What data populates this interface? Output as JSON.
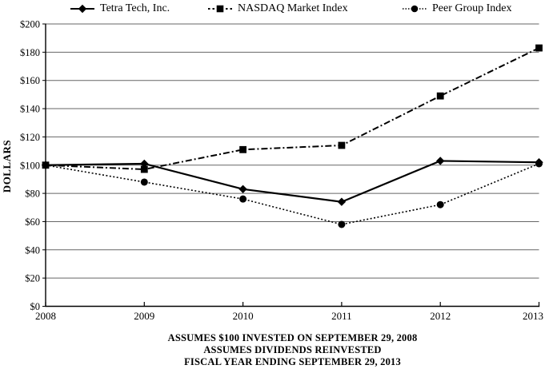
{
  "chart_data": {
    "type": "line",
    "x": [
      "2008",
      "2009",
      "2010",
      "2011",
      "2012",
      "2013"
    ],
    "ylabel": "DOLLARS",
    "ylim": [
      0,
      200
    ],
    "ytick_step": 20,
    "ytick_labels": [
      "$0",
      "$20",
      "$40",
      "$60",
      "$80",
      "$100",
      "$120",
      "$140",
      "$160",
      "$180",
      "$200"
    ],
    "grid": "horizontal",
    "legend_position": "top",
    "series": [
      {
        "name": "Tetra Tech, Inc.",
        "marker": "diamond",
        "line_style": "solid",
        "color": "#000000",
        "values": [
          100,
          101,
          83,
          74,
          103,
          102
        ]
      },
      {
        "name": "NASDAQ Market Index",
        "marker": "square",
        "line_style": "dash-dot",
        "color": "#000000",
        "values": [
          100,
          97,
          111,
          114,
          149,
          183
        ]
      },
      {
        "name": "Peer Group Index",
        "marker": "circle",
        "line_style": "dotted",
        "color": "#000000",
        "values": [
          100,
          88,
          76,
          58,
          72,
          101
        ]
      }
    ],
    "footnote_lines": [
      "ASSUMES $100 INVESTED ON SEPTEMBER 29, 2008",
      "ASSUMES DIVIDENDS REINVESTED",
      "FISCAL YEAR ENDING SEPTEMBER 29, 2013"
    ]
  },
  "colors": {
    "foreground": "#000000",
    "gridline": "#666666",
    "background": "#ffffff"
  }
}
